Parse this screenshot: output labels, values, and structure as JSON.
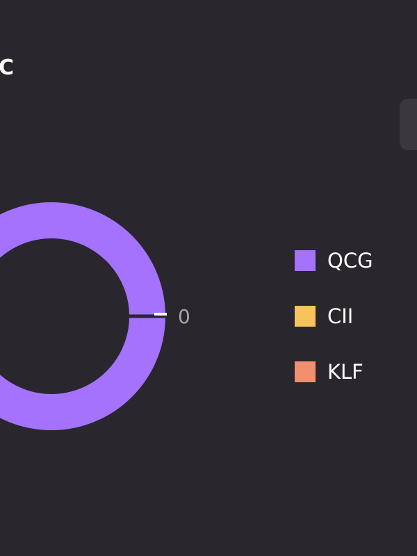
{
  "header": {
    "title": "C"
  },
  "chart_data": {
    "type": "pie",
    "style": "donut",
    "series": [
      {
        "name": "QCG",
        "value": 0,
        "color": "#a472fc"
      },
      {
        "name": "CII",
        "value": 0,
        "color": "#f6c45a"
      },
      {
        "name": "KLF",
        "value": 0,
        "color": "#ef8f6e"
      }
    ],
    "data_label": "0",
    "legend_position": "right"
  },
  "colors": {
    "background": "#29262d",
    "text": "#ffffff",
    "data_label": "#a8a6ac",
    "side_tab": "#3a373e"
  }
}
